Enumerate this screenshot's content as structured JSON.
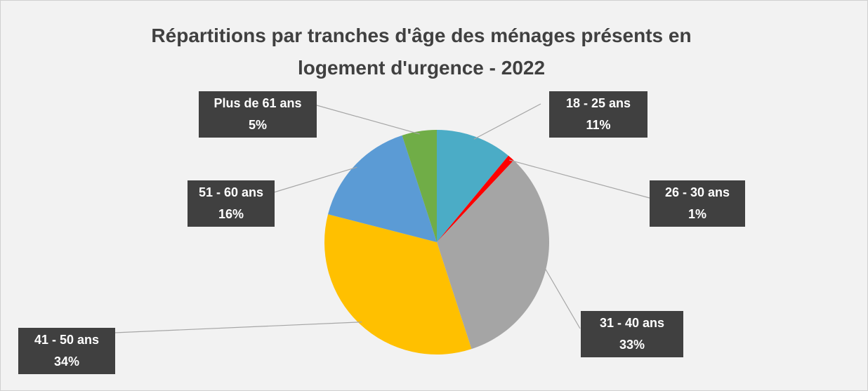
{
  "chart_data": {
    "type": "pie",
    "title": "Répartitions par tranches d'âge des ménages présents en logement d'urgence - 2022",
    "categories": [
      "18 - 25 ans",
      "26 - 30 ans",
      "31 - 40 ans",
      "41 - 50 ans",
      "51 - 60 ans",
      "Plus de 61 ans"
    ],
    "values": [
      11,
      1,
      33,
      34,
      16,
      5
    ],
    "value_labels": [
      "11%",
      "1%",
      "33%",
      "34%",
      "16%",
      "5%"
    ],
    "colors": [
      "#4bacc6",
      "#ff0000",
      "#a5a5a5",
      "#ffc000",
      "#5b9bd5",
      "#70ad47"
    ]
  }
}
